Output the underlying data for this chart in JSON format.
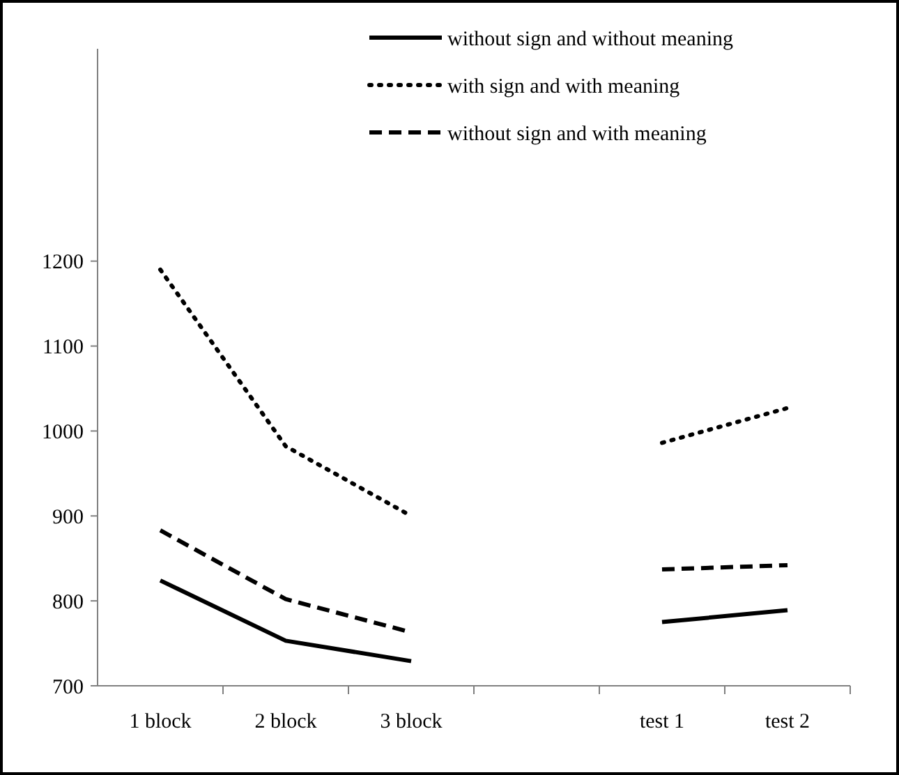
{
  "chart_data": {
    "type": "line",
    "categories": [
      "1 block",
      "2 block",
      "3 block",
      null,
      "test 1",
      "test 2"
    ],
    "series": [
      {
        "name": "without sign and without meaning",
        "color": "#000000",
        "line_style": "solid",
        "values": [
          824,
          753,
          729,
          null,
          775,
          789
        ]
      },
      {
        "name": "with sign and with meaning",
        "color": "#000000",
        "line_style": "dotted",
        "values": [
          1190,
          982,
          900,
          null,
          986,
          1027
        ]
      },
      {
        "name": "without sign and with meaning",
        "color": "#000000",
        "line_style": "dashed",
        "values": [
          883,
          802,
          763,
          null,
          837,
          842
        ]
      }
    ],
    "ylim": [
      700,
      1450
    ],
    "yticks": [
      700,
      800,
      900,
      1000,
      1100,
      1200
    ],
    "grid": false,
    "legend": "top right",
    "marker": "none"
  }
}
